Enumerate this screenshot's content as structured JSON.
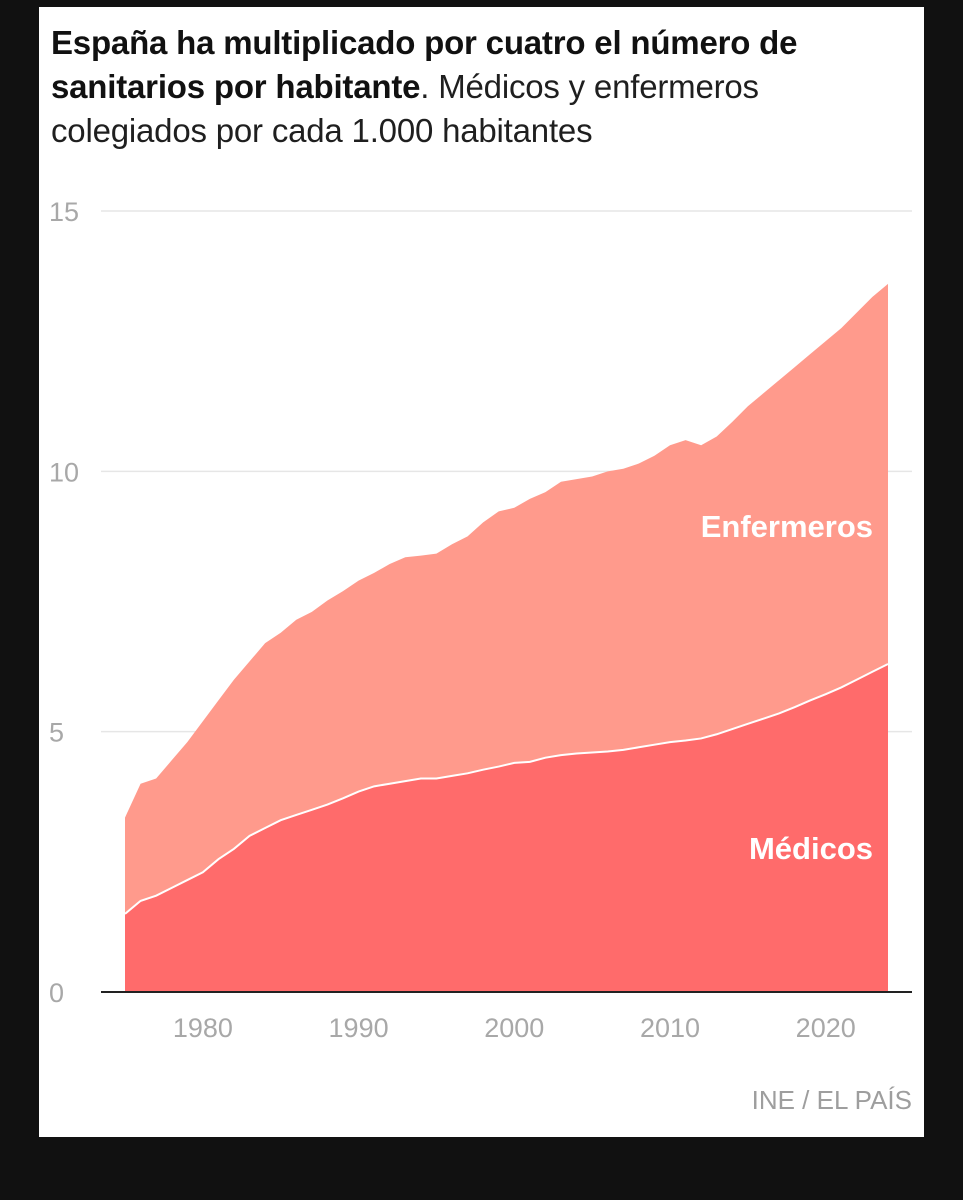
{
  "title_bold": "España ha multiplicado por cuatro el número de sanitarios por habitante",
  "title_period": ".",
  "subtitle": "Médicos y enfermeros colegiados por cada 1.000 habitantes",
  "source": "INE / EL PAÍS",
  "colors": {
    "background": "#111111",
    "card": "#ffffff",
    "medicos": "#ff6b6b",
    "enfermeros": "#ff9a8c",
    "grid": "#e6e6e6",
    "axis_text": "#a8a8a8"
  },
  "chart_data": {
    "type": "area",
    "stacked": true,
    "x": [
      1975,
      1976,
      1977,
      1978,
      1979,
      1980,
      1981,
      1982,
      1983,
      1984,
      1985,
      1986,
      1987,
      1988,
      1989,
      1990,
      1991,
      1992,
      1993,
      1994,
      1995,
      1996,
      1997,
      1998,
      1999,
      2000,
      2001,
      2002,
      2003,
      2004,
      2005,
      2006,
      2007,
      2008,
      2009,
      2010,
      2011,
      2012,
      2013,
      2014,
      2015,
      2016,
      2017,
      2018,
      2019,
      2020,
      2021,
      2022,
      2023,
      2024
    ],
    "series": [
      {
        "name": "Médicos",
        "values": [
          1.5,
          1.75,
          1.85,
          2.0,
          2.15,
          2.3,
          2.55,
          2.75,
          3.0,
          3.15,
          3.3,
          3.4,
          3.5,
          3.6,
          3.72,
          3.85,
          3.95,
          4.0,
          4.05,
          4.1,
          4.1,
          4.15,
          4.2,
          4.27,
          4.33,
          4.4,
          4.42,
          4.5,
          4.55,
          4.58,
          4.6,
          4.62,
          4.65,
          4.7,
          4.75,
          4.8,
          4.83,
          4.87,
          4.95,
          5.05,
          5.15,
          5.25,
          5.35,
          5.47,
          5.6,
          5.72,
          5.85,
          6.0,
          6.15,
          6.3
        ]
      },
      {
        "name": "Enfermeros",
        "values": [
          1.85,
          2.25,
          2.25,
          2.45,
          2.65,
          2.9,
          3.05,
          3.25,
          3.35,
          3.55,
          3.6,
          3.75,
          3.8,
          3.92,
          3.98,
          4.05,
          4.1,
          4.22,
          4.3,
          4.28,
          4.32,
          4.45,
          4.55,
          4.75,
          4.9,
          4.9,
          5.05,
          5.1,
          5.25,
          5.27,
          5.3,
          5.38,
          5.4,
          5.45,
          5.55,
          5.7,
          5.77,
          5.63,
          5.72,
          5.9,
          6.1,
          6.25,
          6.4,
          6.53,
          6.65,
          6.78,
          6.9,
          7.05,
          7.2,
          7.3
        ]
      }
    ],
    "xlim": [
      1975,
      2024
    ],
    "ylim": [
      0,
      15
    ],
    "yticks": [
      "0",
      "5",
      "10",
      "15"
    ],
    "xticks": [
      "1980",
      "1990",
      "2000",
      "2010",
      "2020"
    ],
    "grid": true
  }
}
